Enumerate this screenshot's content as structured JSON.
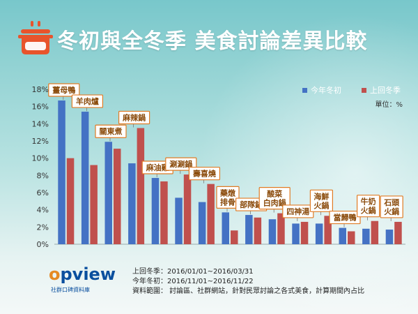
{
  "title": "冬初與全冬季 美食討論差異比較",
  "icon": "cooking-pot-icon",
  "colors": {
    "current": "#4472c4",
    "previous": "#c0504d",
    "label_box_border": "#e07b24",
    "label_text": "#8a4a0a",
    "title": "#ffffff",
    "pot": "#e8542c"
  },
  "legend": {
    "current_label": "今年冬初",
    "previous_label": "上回冬季",
    "unit": "單位：%"
  },
  "chart_data": {
    "type": "bar",
    "title": "冬初與全冬季 美食討論差異比較",
    "ylabel": "",
    "ylim": [
      0,
      18
    ],
    "yticks": [
      "0%",
      "2%",
      "4%",
      "6%",
      "8%",
      "10%",
      "12%",
      "14%",
      "16%",
      "18%"
    ],
    "grid": false,
    "legend_position": "top-right",
    "categories": [
      "薑母鴨",
      "羊肉爐",
      "關東煮",
      "麻辣鍋",
      "麻油雞",
      "涮涮鍋",
      "壽喜燒",
      "藥燉排骨",
      "部隊鍋",
      "酸菜白肉鍋",
      "四神湯",
      "海鮮火鍋",
      "當歸鴨",
      "牛奶火鍋",
      "石頭火鍋"
    ],
    "series": [
      {
        "name": "今年冬初",
        "values": [
          16.7,
          15.4,
          11.9,
          9.4,
          7.7,
          5.4,
          4.9,
          3.7,
          3.4,
          2.9,
          2.4,
          2.4,
          1.9,
          1.8,
          1.7
        ]
      },
      {
        "name": "上回冬季",
        "values": [
          10.0,
          9.2,
          11.1,
          13.5,
          7.3,
          8.1,
          7.0,
          1.6,
          3.1,
          3.6,
          2.6,
          3.3,
          1.5,
          2.7,
          2.6
        ]
      }
    ]
  },
  "labels": [
    [
      "薑母鴨"
    ],
    [
      "羊肉爐"
    ],
    [
      "關東煮"
    ],
    [
      "麻辣鍋"
    ],
    [
      "麻油雞"
    ],
    [
      "涮涮鍋"
    ],
    [
      "壽喜燒"
    ],
    [
      "藥燉",
      "排骨"
    ],
    [
      "部隊鍋"
    ],
    [
      "酸菜",
      "白肉鍋"
    ],
    [
      "四神湯"
    ],
    [
      "海鮮",
      "火鍋"
    ],
    [
      "當歸鴨"
    ],
    [
      "牛奶",
      "火鍋"
    ],
    [
      "石頭",
      "火鍋"
    ]
  ],
  "footer": {
    "logo_text_o": "o",
    "logo_text_rest": "pview",
    "logo_subtitle": "社群口碑資料庫",
    "line1": "上回冬季：2016/01/01~2016/03/31",
    "line2": "今年冬初：2016/11/01~2016/11/22",
    "line3": "資料範圍： 討論區、社群網站，針對民眾討論之各式美食，計算期間內占比"
  }
}
